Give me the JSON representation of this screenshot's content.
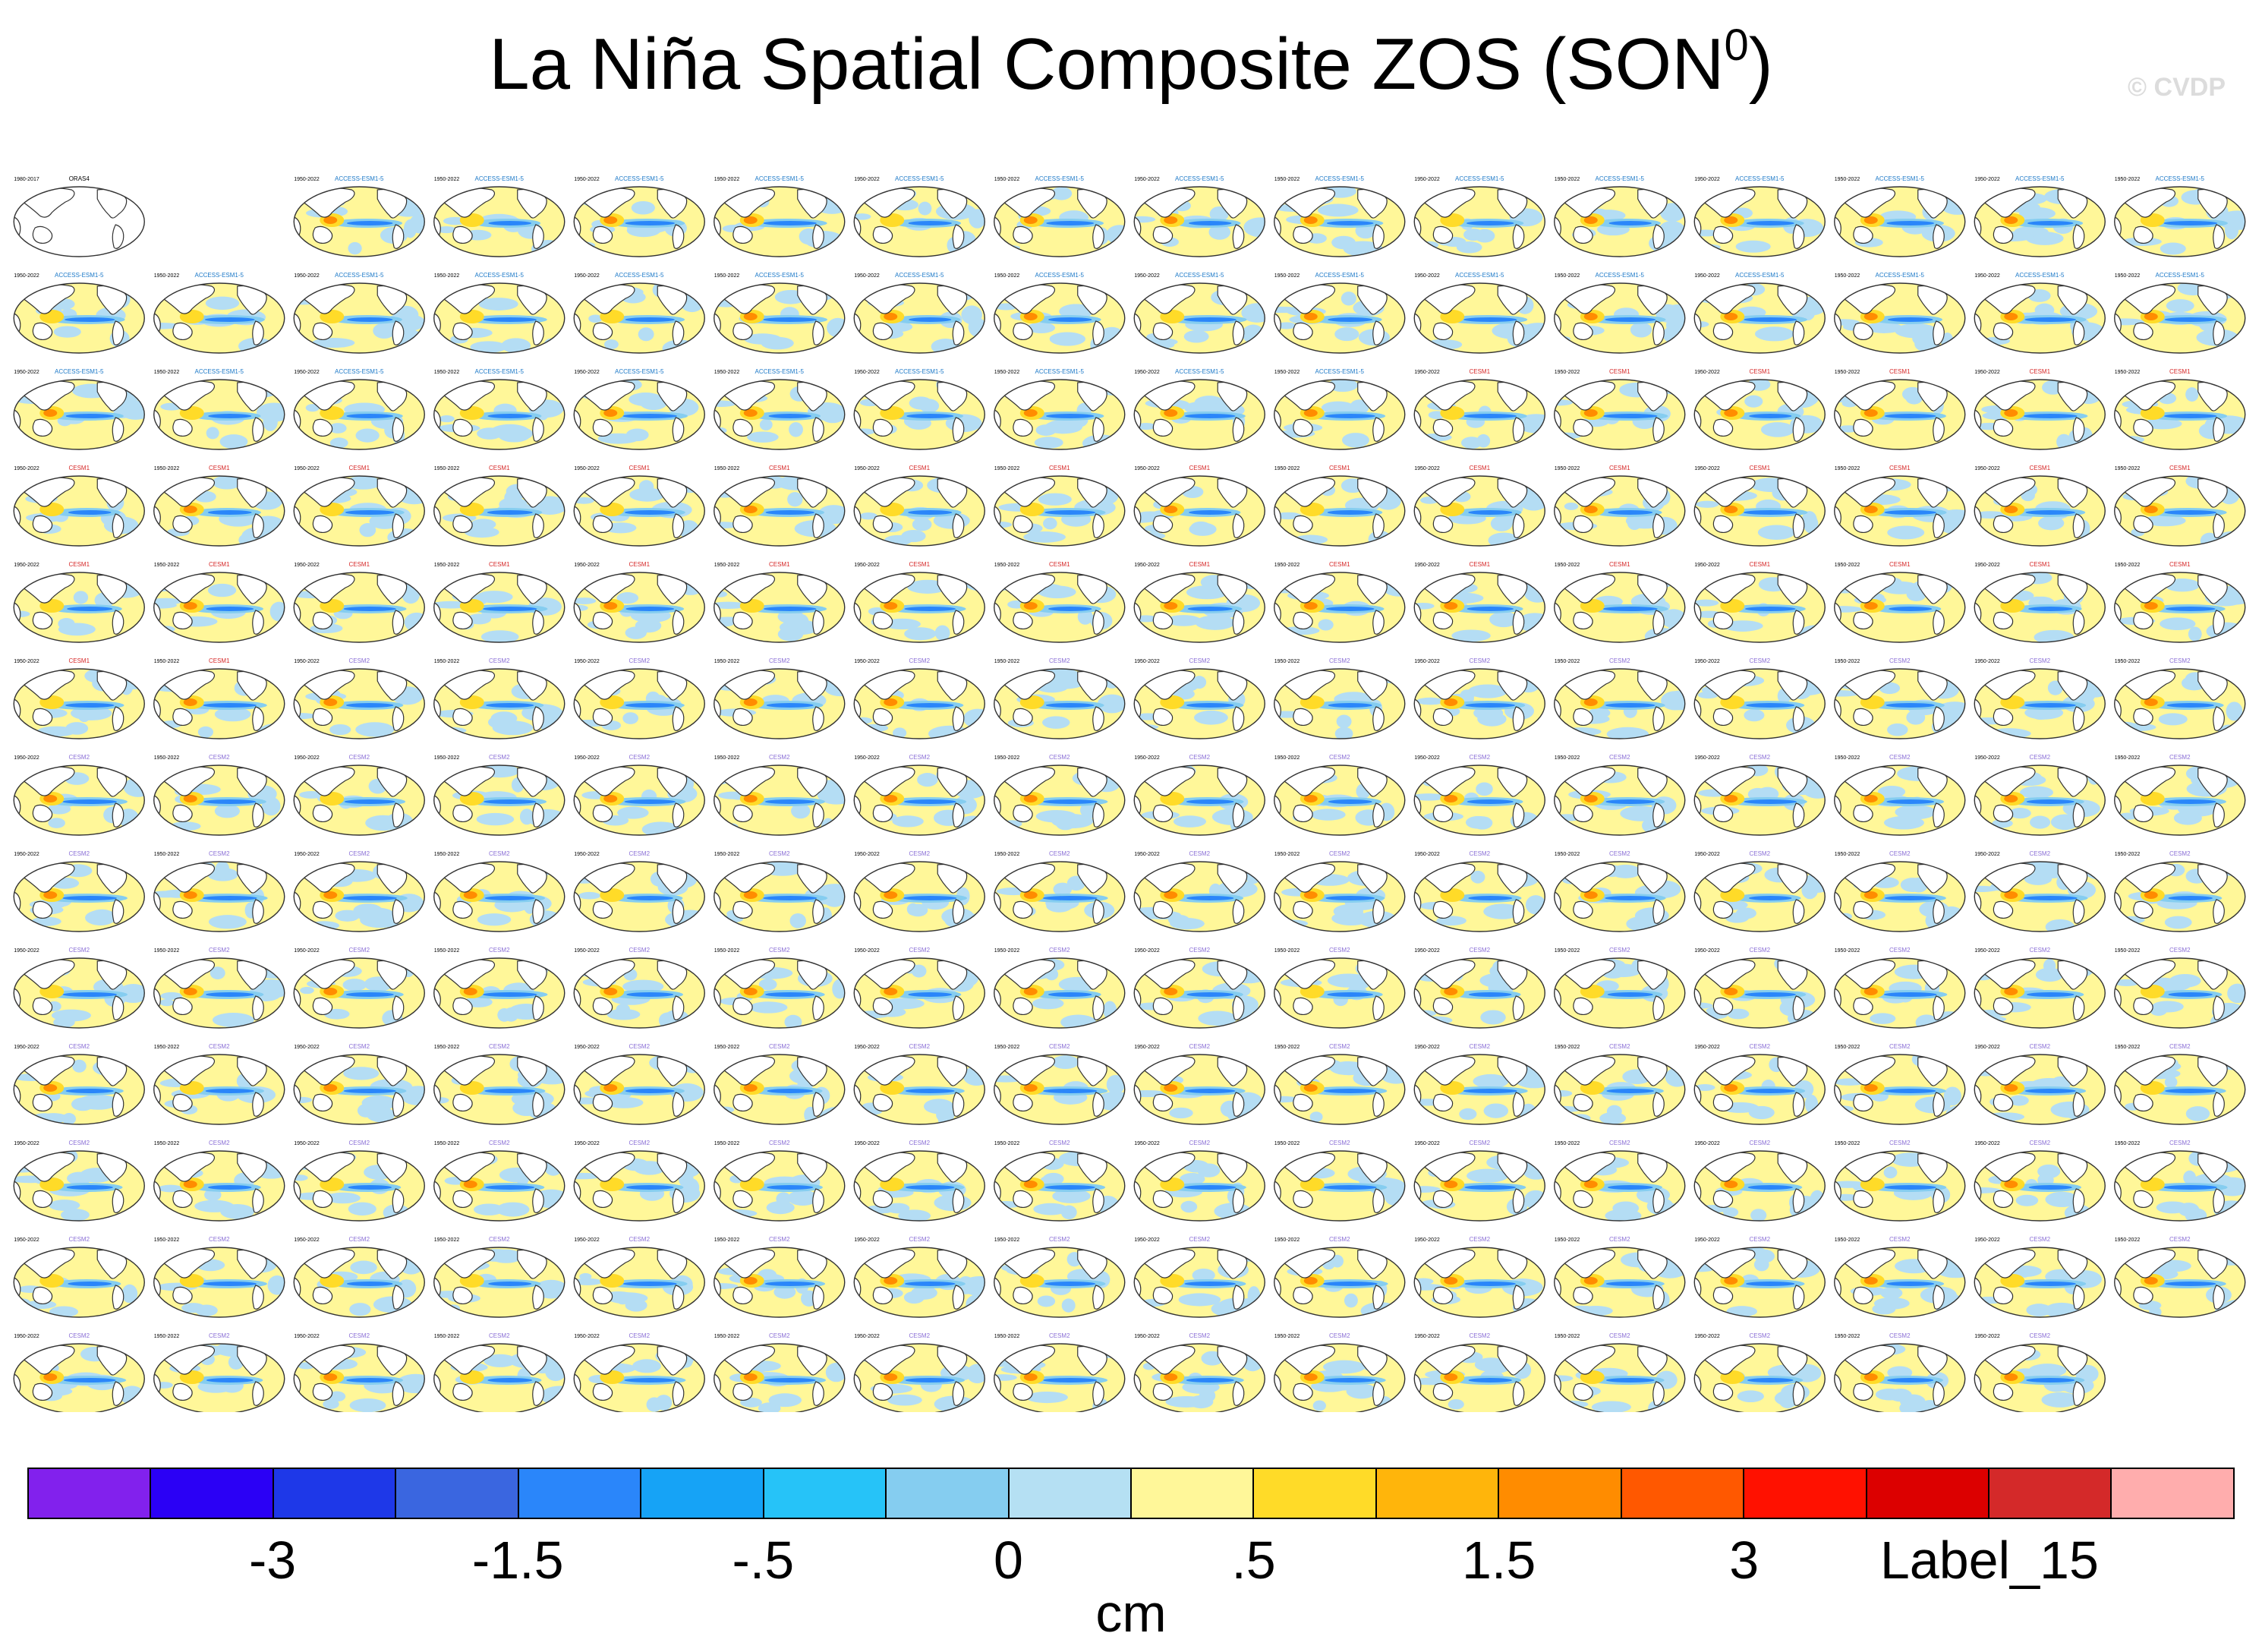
{
  "title": {
    "main": "La Niña Spatial Composite ZOS (SON",
    "superscript": "0",
    "close": ")"
  },
  "watermark": "© CVDP",
  "grid": {
    "columns": 16,
    "rows": 13,
    "observation_panel": {
      "label": "ORAS4",
      "years": "1980-2017"
    },
    "model_panel_years": "1950-2022",
    "model_panel_count": 205,
    "model_families": [
      {
        "name": "ACCESS-ESM1-5",
        "label_color": "#1c79c8"
      },
      {
        "name": "CESM1",
        "label_color": "#d62828"
      },
      {
        "name": "CESM2",
        "label_color": "#8a6fd6"
      }
    ],
    "map_colors": {
      "land": "#ffffff",
      "coastline": "#333333",
      "background": "#fff799",
      "negative_fill": "#b4ddf4",
      "positive_fill": "#fff799"
    }
  },
  "colorbar": {
    "colors": [
      "#8221ed",
      "#2b00f5",
      "#1e38e8",
      "#3a66e0",
      "#2a86fa",
      "#16a3f6",
      "#26c3f8",
      "#85cdf0",
      "#b5e0f3",
      "#fff799",
      "#ffdb28",
      "#ffb50b",
      "#ff8c00",
      "#ff5800",
      "#ff1100",
      "#dc0000",
      "#d42929",
      "#ffadad"
    ],
    "labels": [
      {
        "text": "-3",
        "boundary": 2
      },
      {
        "text": "-1.5",
        "boundary": 4
      },
      {
        "text": "-.5",
        "boundary": 6
      },
      {
        "text": "0",
        "boundary": 8
      },
      {
        "text": ".5",
        "boundary": 10
      },
      {
        "text": "1.5",
        "boundary": 12
      },
      {
        "text": "3",
        "boundary": 14
      },
      {
        "text": "Label_15",
        "boundary": 16
      }
    ],
    "units": "cm"
  }
}
